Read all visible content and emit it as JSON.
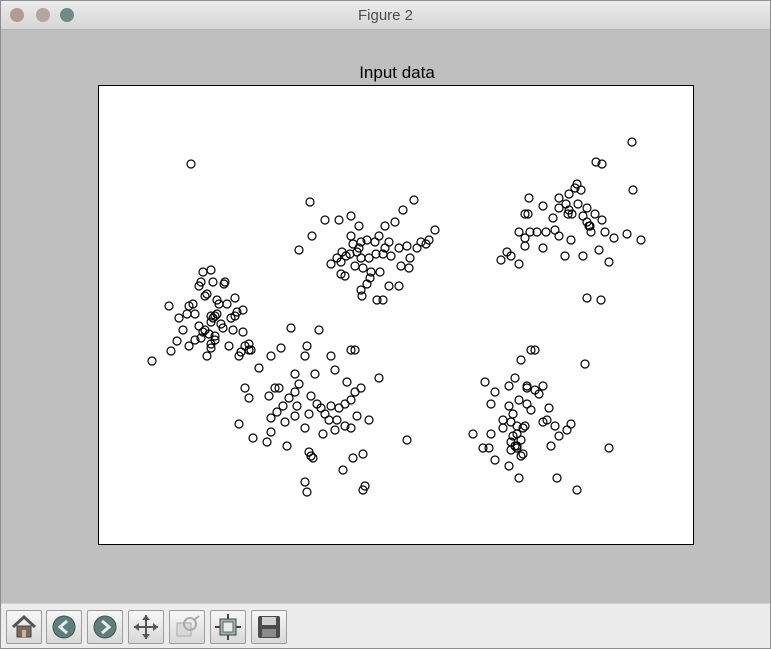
{
  "window": {
    "title": "Figure 2",
    "traffic_light_colors": [
      "#b39b95",
      "#b3a6a0",
      "#6f8a87"
    ]
  },
  "toolbar": {
    "buttons": [
      {
        "icon": "home-icon"
      },
      {
        "icon": "back-arrow-icon"
      },
      {
        "icon": "forward-arrow-icon"
      },
      {
        "icon": "pan-icon"
      },
      {
        "icon": "zoom-icon"
      },
      {
        "icon": "subplots-icon"
      },
      {
        "icon": "save-icon"
      }
    ]
  },
  "chart_data": {
    "type": "scatter",
    "title": "Input data",
    "xlabel": "",
    "ylabel": "",
    "axes_visible": false,
    "grid": false,
    "xlim": [
      0,
      596
    ],
    "ylim": [
      0,
      460
    ],
    "marker": "open-circle",
    "marker_color": "#000000",
    "points": [
      [
        53,
        275
      ],
      [
        72,
        265
      ],
      [
        78,
        255
      ],
      [
        84,
        244
      ],
      [
        90,
        260
      ],
      [
        102,
        252
      ],
      [
        112,
        258
      ],
      [
        96,
        228
      ],
      [
        116,
        230
      ],
      [
        134,
        244
      ],
      [
        142,
        266
      ],
      [
        150,
        264
      ],
      [
        138,
        226
      ],
      [
        118,
        214
      ],
      [
        126,
        196
      ],
      [
        108,
        208
      ],
      [
        88,
        228
      ],
      [
        100,
        200
      ],
      [
        112,
        230
      ],
      [
        106,
        244
      ],
      [
        112,
        184
      ],
      [
        120,
        218
      ],
      [
        122,
        238
      ],
      [
        94,
        218
      ],
      [
        80,
        232
      ],
      [
        70,
        220
      ],
      [
        90,
        220
      ],
      [
        104,
        186
      ],
      [
        112,
        262
      ],
      [
        108,
        270
      ],
      [
        144,
        246
      ],
      [
        150,
        258
      ],
      [
        100,
        240
      ],
      [
        110,
        248
      ],
      [
        128,
        218
      ],
      [
        136,
        230
      ],
      [
        124,
        242
      ],
      [
        114,
        232
      ],
      [
        116,
        250
      ],
      [
        118,
        228
      ],
      [
        130,
        260
      ],
      [
        144,
        224
      ],
      [
        152,
        264
      ],
      [
        146,
        260
      ],
      [
        106,
        210
      ],
      [
        102,
        196
      ],
      [
        114,
        196
      ],
      [
        136,
        212
      ],
      [
        140,
        270
      ],
      [
        92,
        78
      ],
      [
        125,
        198
      ],
      [
        112,
        236
      ],
      [
        96,
        254
      ],
      [
        132,
        232
      ],
      [
        104,
        246
      ],
      [
        116,
        254
      ],
      [
        296,
        136
      ],
      [
        315,
        114
      ],
      [
        304,
        124
      ],
      [
        286,
        140
      ],
      [
        276,
        156
      ],
      [
        262,
        156
      ],
      [
        242,
        176
      ],
      [
        256,
        180
      ],
      [
        263,
        210
      ],
      [
        271,
        192
      ],
      [
        281,
        186
      ],
      [
        290,
        200
      ],
      [
        300,
        200
      ],
      [
        310,
        182
      ],
      [
        322,
        156
      ],
      [
        336,
        144
      ],
      [
        327,
        158
      ],
      [
        311,
        172
      ],
      [
        300,
        162
      ],
      [
        286,
        162
      ],
      [
        277,
        168
      ],
      [
        270,
        172
      ],
      [
        262,
        172
      ],
      [
        258,
        166
      ],
      [
        247,
        170
      ],
      [
        243,
        166
      ],
      [
        238,
        172
      ],
      [
        232,
        178
      ],
      [
        226,
        134
      ],
      [
        211,
        116
      ],
      [
        200,
        164
      ],
      [
        213,
        150
      ],
      [
        240,
        134
      ],
      [
        252,
        130
      ],
      [
        260,
        140
      ],
      [
        254,
        158
      ],
      [
        242,
        188
      ],
      [
        262,
        204
      ],
      [
        268,
        198
      ],
      [
        278,
        214
      ],
      [
        284,
        214
      ],
      [
        292,
        170
      ],
      [
        308,
        160
      ],
      [
        280,
        150
      ],
      [
        251,
        168
      ],
      [
        268,
        154
      ],
      [
        302,
        180
      ],
      [
        264,
        182
      ],
      [
        330,
        154
      ],
      [
        252,
        150
      ],
      [
        260,
        162
      ],
      [
        272,
        186
      ],
      [
        284,
        168
      ],
      [
        290,
        156
      ],
      [
        318,
        162
      ],
      [
        246,
        190
      ],
      [
        533,
        56
      ],
      [
        497,
        76
      ],
      [
        503,
        78
      ],
      [
        478,
        98
      ],
      [
        470,
        108
      ],
      [
        467,
        118
      ],
      [
        470,
        124
      ],
      [
        473,
        128
      ],
      [
        460,
        122
      ],
      [
        454,
        132
      ],
      [
        447,
        146
      ],
      [
        438,
        146
      ],
      [
        431,
        146
      ],
      [
        426,
        152
      ],
      [
        420,
        146
      ],
      [
        408,
        166
      ],
      [
        412,
        170
      ],
      [
        420,
        178
      ],
      [
        426,
        160
      ],
      [
        444,
        120
      ],
      [
        460,
        112
      ],
      [
        476,
        102
      ],
      [
        488,
        122
      ],
      [
        503,
        134
      ],
      [
        506,
        146
      ],
      [
        510,
        176
      ],
      [
        500,
        164
      ],
      [
        484,
        170
      ],
      [
        466,
        170
      ],
      [
        460,
        150
      ],
      [
        492,
        146
      ],
      [
        515,
        152
      ],
      [
        528,
        148
      ],
      [
        542,
        154
      ],
      [
        534,
        104
      ],
      [
        479,
        118
      ],
      [
        488,
        212
      ],
      [
        502,
        214
      ],
      [
        429,
        128
      ],
      [
        430,
        112
      ],
      [
        469,
        128
      ],
      [
        484,
        130
      ],
      [
        456,
        144
      ],
      [
        472,
        154
      ],
      [
        490,
        140
      ],
      [
        444,
        162
      ],
      [
        482,
        104
      ],
      [
        496,
        128
      ],
      [
        402,
        174
      ],
      [
        426,
        128
      ],
      [
        491,
        140
      ],
      [
        488,
        136
      ],
      [
        192,
        242
      ],
      [
        220,
        244
      ],
      [
        252,
        264
      ],
      [
        256,
        264
      ],
      [
        280,
        292
      ],
      [
        232,
        270
      ],
      [
        206,
        270
      ],
      [
        208,
        260
      ],
      [
        182,
        262
      ],
      [
        172,
        270
      ],
      [
        160,
        282
      ],
      [
        146,
        302
      ],
      [
        150,
        312
      ],
      [
        172,
        332
      ],
      [
        172,
        346
      ],
      [
        168,
        356
      ],
      [
        178,
        326
      ],
      [
        184,
        320
      ],
      [
        190,
        312
      ],
      [
        196,
        330
      ],
      [
        206,
        342
      ],
      [
        210,
        366
      ],
      [
        214,
        372
      ],
      [
        188,
        360
      ],
      [
        206,
        396
      ],
      [
        208,
        406
      ],
      [
        212,
        370
      ],
      [
        224,
        348
      ],
      [
        236,
        344
      ],
      [
        246,
        340
      ],
      [
        252,
        342
      ],
      [
        264,
        368
      ],
      [
        254,
        372
      ],
      [
        244,
        384
      ],
      [
        266,
        400
      ],
      [
        226,
        328
      ],
      [
        218,
        318
      ],
      [
        196,
        306
      ],
      [
        180,
        302
      ],
      [
        200,
        298
      ],
      [
        212,
        310
      ],
      [
        222,
        322
      ],
      [
        232,
        320
      ],
      [
        240,
        322
      ],
      [
        262,
        302
      ],
      [
        256,
        306
      ],
      [
        252,
        314
      ],
      [
        246,
        318
      ],
      [
        270,
        334
      ],
      [
        258,
        330
      ],
      [
        308,
        354
      ],
      [
        264,
        404
      ],
      [
        230,
        334
      ],
      [
        248,
        296
      ],
      [
        236,
        284
      ],
      [
        238,
        334
      ],
      [
        186,
        336
      ],
      [
        198,
        320
      ],
      [
        210,
        328
      ],
      [
        216,
        288
      ],
      [
        196,
        288
      ],
      [
        176,
        302
      ],
      [
        154,
        352
      ],
      [
        140,
        338
      ],
      [
        170,
        310
      ],
      [
        432,
        264
      ],
      [
        422,
        274
      ],
      [
        436,
        264
      ],
      [
        386,
        296
      ],
      [
        392,
        318
      ],
      [
        396,
        306
      ],
      [
        410,
        320
      ],
      [
        414,
        328
      ],
      [
        428,
        318
      ],
      [
        444,
        336
      ],
      [
        448,
        334
      ],
      [
        456,
        340
      ],
      [
        468,
        344
      ],
      [
        472,
        338
      ],
      [
        460,
        350
      ],
      [
        452,
        360
      ],
      [
        432,
        324
      ],
      [
        424,
        342
      ],
      [
        418,
        348
      ],
      [
        404,
        342
      ],
      [
        392,
        348
      ],
      [
        384,
        362
      ],
      [
        374,
        348
      ],
      [
        390,
        362
      ],
      [
        396,
        374
      ],
      [
        410,
        380
      ],
      [
        422,
        370
      ],
      [
        418,
        340
      ],
      [
        414,
        350
      ],
      [
        412,
        336
      ],
      [
        420,
        314
      ],
      [
        428,
        302
      ],
      [
        436,
        304
      ],
      [
        440,
        308
      ],
      [
        444,
        300
      ],
      [
        450,
        322
      ],
      [
        410,
        300
      ],
      [
        416,
        292
      ],
      [
        404,
        334
      ],
      [
        416,
        360
      ],
      [
        420,
        392
      ],
      [
        458,
        392
      ],
      [
        478,
        404
      ],
      [
        486,
        278
      ],
      [
        510,
        362
      ],
      [
        418,
        362
      ],
      [
        422,
        354
      ],
      [
        412,
        356
      ],
      [
        424,
        368
      ],
      [
        426,
        340
      ],
      [
        412,
        364
      ],
      [
        428,
        300
      ],
      [
        418,
        360
      ]
    ]
  }
}
